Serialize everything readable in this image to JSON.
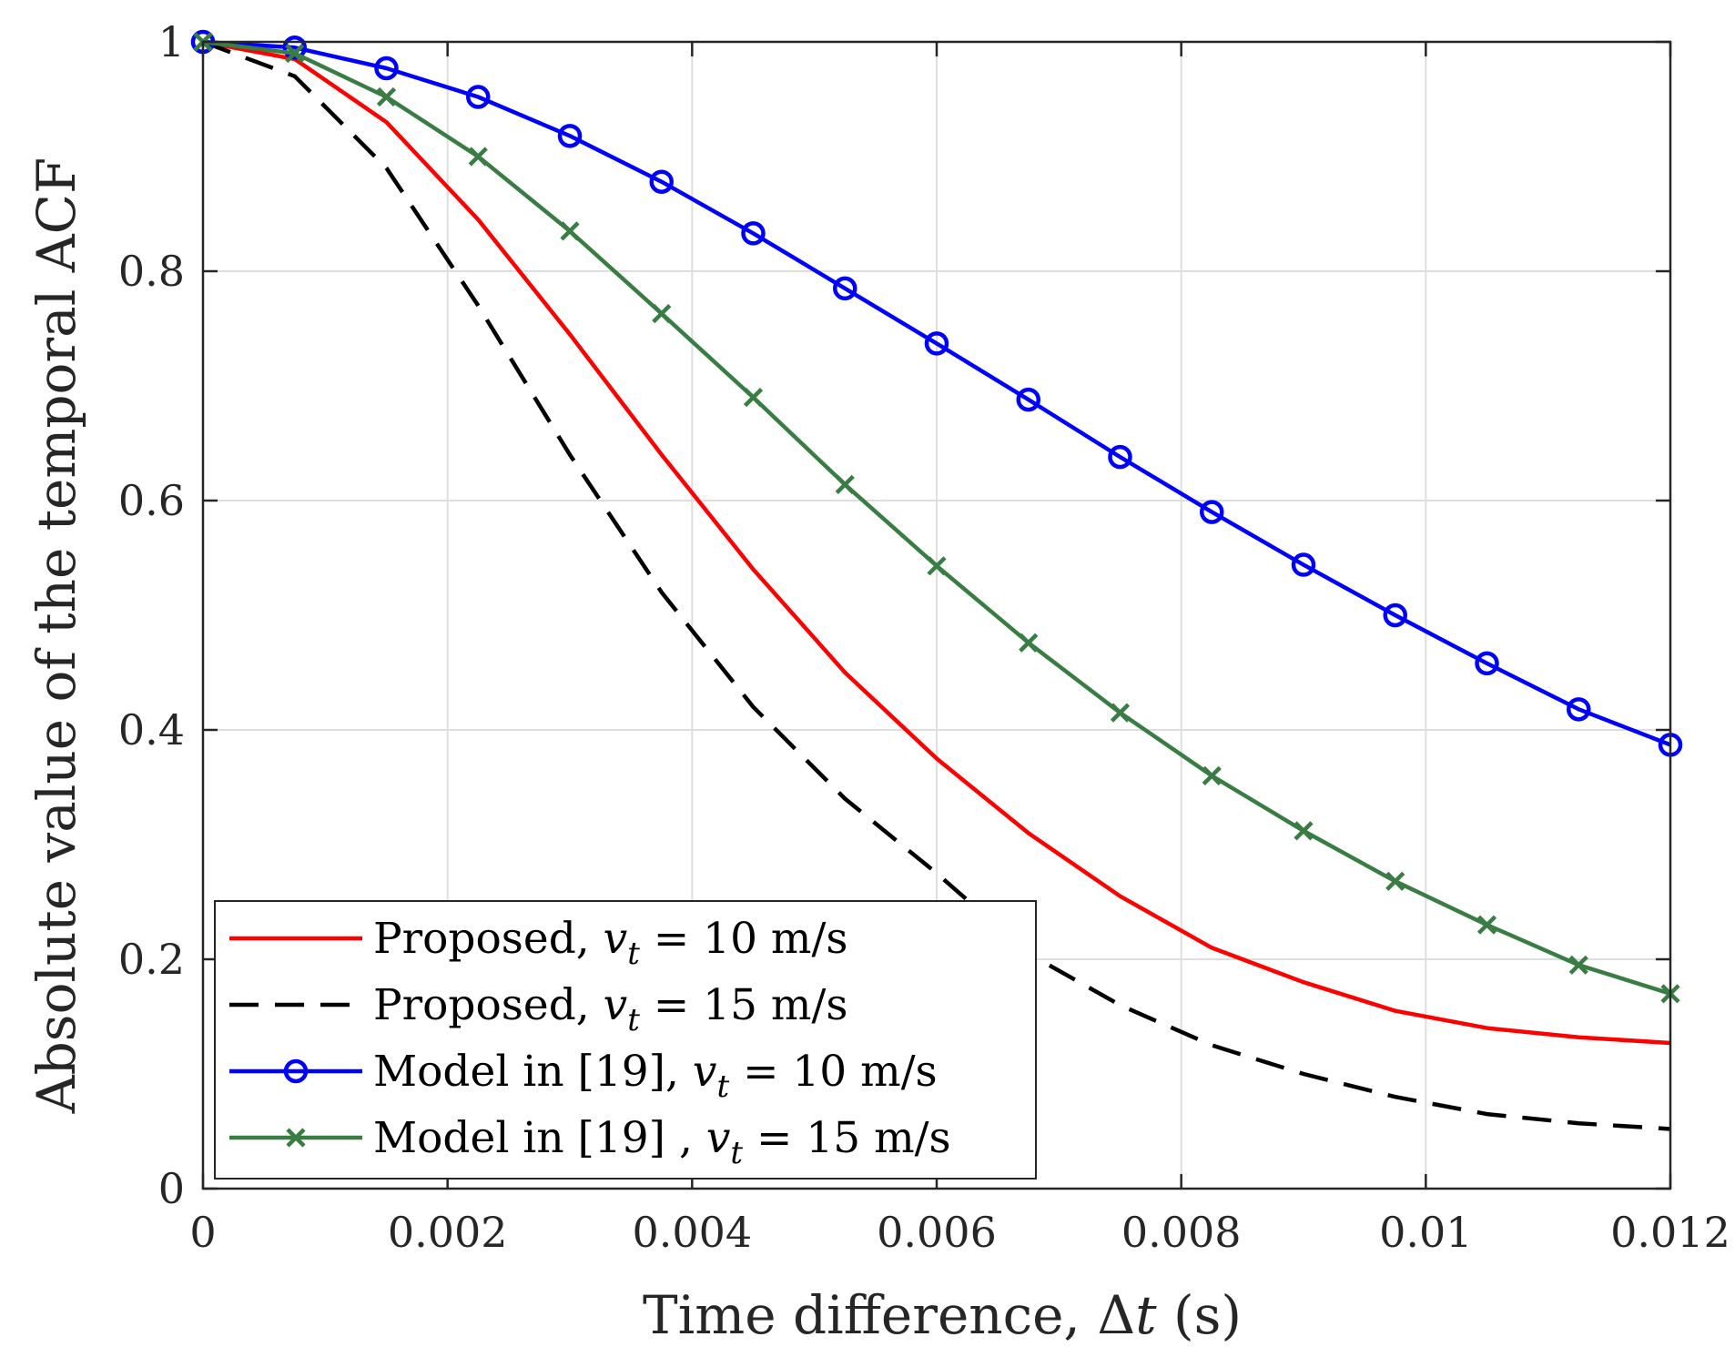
{
  "chart_data": {
    "type": "line",
    "xlabel": {
      "prefix": "Time difference, ",
      "symbol": "Δ",
      "var": "t",
      "suffix": " (s)"
    },
    "ylabel": "Absolute value of the temporal ACF",
    "xlim": [
      0,
      0.012
    ],
    "ylim": [
      0,
      1
    ],
    "xticks": [
      0,
      0.002,
      0.004,
      0.006,
      0.008,
      0.01,
      0.012
    ],
    "xtick_labels": [
      "0",
      "0.002",
      "0.004",
      "0.006",
      "0.008",
      "0.01",
      "0.012"
    ],
    "yticks": [
      0,
      0.2,
      0.4,
      0.6,
      0.8,
      1
    ],
    "ytick_labels": [
      "0",
      "0.2",
      "0.4",
      "0.6",
      "0.8",
      "1"
    ],
    "grid": true,
    "legend_position": "bottom-left",
    "x": [
      0,
      0.00075,
      0.0015,
      0.00225,
      0.003,
      0.00375,
      0.0045,
      0.00525,
      0.006,
      0.00675,
      0.0075,
      0.00825,
      0.009,
      0.00975,
      0.0105,
      0.01125,
      0.012
    ],
    "series": [
      {
        "name": "Proposed, v_t = 10 m/s",
        "legend": {
          "prefix": "Proposed, ",
          "var": "v",
          "sub": "t",
          "suffix": " = 10 m/s"
        },
        "color": "#ff0000",
        "dash": "solid",
        "marker": "none",
        "values": [
          1.0,
          0.985,
          0.93,
          0.845,
          0.745,
          0.64,
          0.54,
          0.45,
          0.375,
          0.31,
          0.255,
          0.21,
          0.18,
          0.155,
          0.14,
          0.132,
          0.127
        ]
      },
      {
        "name": "Proposed, v_t = 15 m/s",
        "legend": {
          "prefix": "Proposed, ",
          "var": "v",
          "sub": "t",
          "suffix": " = 15 m/s"
        },
        "color": "#000000",
        "dash": "dashed",
        "marker": "none",
        "values": [
          1.0,
          0.97,
          0.89,
          0.77,
          0.64,
          0.52,
          0.42,
          0.34,
          0.275,
          0.205,
          0.16,
          0.125,
          0.1,
          0.08,
          0.065,
          0.057,
          0.052
        ]
      },
      {
        "name": "Model in [19], v_t = 10 m/s",
        "legend": {
          "prefix": "Model in [19], ",
          "var": "v",
          "sub": "t",
          "suffix": " = 10 m/s"
        },
        "color": "#0000ff",
        "dash": "solid",
        "marker": "circle",
        "values": [
          1.0,
          0.995,
          0.977,
          0.952,
          0.918,
          0.878,
          0.833,
          0.785,
          0.737,
          0.688,
          0.638,
          0.59,
          0.544,
          0.5,
          0.458,
          0.418,
          0.387
        ]
      },
      {
        "name": "Model in [19] , v_t = 15 m/s",
        "legend": {
          "prefix": "Model in [19] , ",
          "var": "v",
          "sub": "t",
          "suffix": " = 15 m/s"
        },
        "color": "#3a7d44",
        "dash": "solid",
        "marker": "x",
        "values": [
          1.0,
          0.99,
          0.952,
          0.9,
          0.835,
          0.763,
          0.69,
          0.614,
          0.543,
          0.476,
          0.415,
          0.36,
          0.312,
          0.268,
          0.23,
          0.195,
          0.17
        ]
      }
    ]
  }
}
